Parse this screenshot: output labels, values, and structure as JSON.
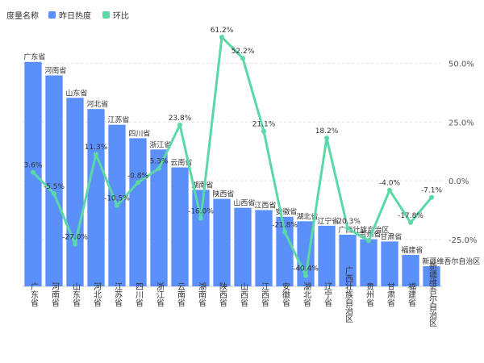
{
  "legend": {
    "title": "度量名称",
    "items": [
      {
        "label": "昨日热度",
        "color": "#5B8FF9"
      },
      {
        "label": "环比",
        "color": "#5AD8A6"
      }
    ]
  },
  "chart_data": {
    "type": "bar",
    "categories": [
      "广东省",
      "河南省",
      "山东省",
      "河北省",
      "江苏省",
      "四川省",
      "浙江省",
      "云南省",
      "湖南省",
      "陕西省",
      "山西省",
      "江西省",
      "安徽省",
      "湖北省",
      "辽宁省",
      "广西壮族自治区",
      "贵州省",
      "甘肃省",
      "福建省",
      "新疆维吾尔自治区"
    ],
    "series": [
      {
        "name": "昨日热度",
        "kind": "bar",
        "color": "#5B8FF9",
        "values": [
          100,
          94,
          84,
          79,
          72,
          66,
          61,
          53,
          43,
          39,
          35,
          34,
          31,
          29,
          27,
          23,
          21,
          20,
          14,
          9
        ]
      },
      {
        "name": "环比",
        "kind": "line",
        "color": "#5AD8A6",
        "values": [
          3.6,
          -5.5,
          -27.0,
          11.3,
          -10.5,
          -0.8,
          5.3,
          23.8,
          -16.0,
          61.2,
          52.2,
          21.1,
          -21.8,
          -40.4,
          18.2,
          -20.3,
          -25.5,
          -4.0,
          -17.8,
          -7.1
        ],
        "labels": [
          "3.6%",
          "-5.5%",
          "-27.0%",
          "11.3%",
          "-10.5%",
          "-0.8%",
          "5.3%",
          "23.8%",
          "-16.0%",
          "61.2%",
          "52.2%",
          "21.1%",
          "-21.8%",
          "-40.4%",
          "18.2%",
          "-20.3%",
          "",
          "-4.0%",
          "-17.8%",
          "-7.1%"
        ]
      }
    ],
    "y2_ticks": [
      "50.0%",
      "25.0%",
      "0.0%",
      "-25.0%"
    ],
    "y2_tick_values": [
      50,
      25,
      0,
      -25
    ],
    "y2_range": [
      -45,
      65
    ],
    "bar_range": [
      0,
      115
    ],
    "grid": true
  }
}
